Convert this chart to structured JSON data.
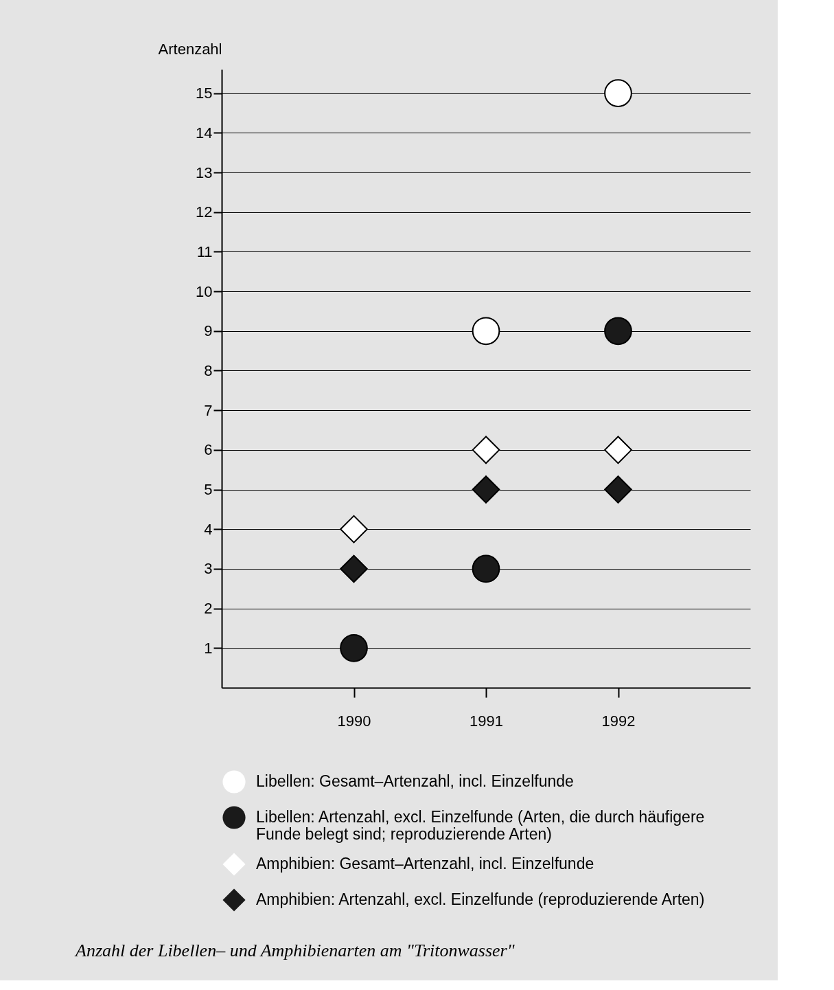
{
  "chart_data": {
    "type": "scatter",
    "title": "Anzahl der Libellen– und Amphibienarten am \"Tritonwasser\"",
    "ylabel": "Artenzahl",
    "categories": [
      "1990",
      "1991",
      "1992"
    ],
    "series": [
      {
        "name": "Libellen: Gesamt–Artenzahl, incl. Einzelfunde",
        "color": "#ffffff",
        "marker": "circle",
        "values": [
          null,
          9,
          15
        ]
      },
      {
        "name": "Libellen: Artenzahl, excl. Einzelfunde (Arten, die durch häufigere Funde belegt sind; reproduzierende Arten)",
        "color": "#1a1a1a",
        "marker": "circle",
        "values": [
          1,
          3,
          9
        ]
      },
      {
        "name": "Amphibien: Gesamt–Artenzahl, incl. Einzelfunde",
        "color": "#ffffff",
        "marker": "diamond",
        "values": [
          4,
          6,
          6
        ]
      },
      {
        "name": "Amphibien: Artenzahl, excl. Einzelfunde (reproduzierende Arten)",
        "color": "#1a1a1a",
        "marker": "diamond",
        "values": [
          3,
          5,
          5
        ]
      }
    ],
    "ylim": [
      0,
      15.6
    ],
    "yticks": [
      1,
      2,
      3,
      4,
      5,
      6,
      7,
      8,
      9,
      10,
      11,
      12,
      13,
      14,
      15
    ],
    "grid": "y",
    "legend": "bottom"
  }
}
